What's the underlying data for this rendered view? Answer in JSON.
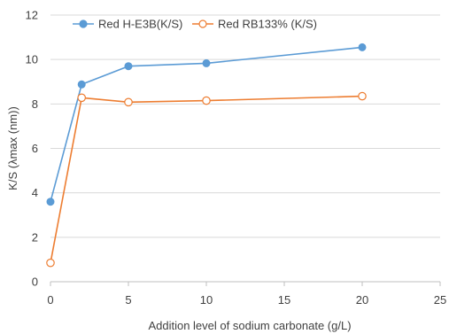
{
  "chart_data": {
    "type": "line",
    "title": "",
    "xlabel": "Addition level of sodium carbonate (g/L)",
    "ylabel": "K/S (λmax (nm))",
    "xlim": [
      0,
      25
    ],
    "ylim": [
      0,
      12
    ],
    "xticks": [
      0,
      5,
      10,
      15,
      20,
      25
    ],
    "yticks": [
      0,
      2,
      4,
      6,
      8,
      10,
      12
    ],
    "x": [
      0,
      2,
      5,
      10,
      20
    ],
    "grid": "horizontal",
    "legend_position": "top",
    "series": [
      {
        "name": "Red H-E3B(K/S)",
        "values": [
          3.6,
          8.88,
          9.7,
          9.83,
          10.55
        ],
        "color": "#5b9bd5",
        "marker": "filled-circle"
      },
      {
        "name": "Red RB133% (K/S)",
        "values": [
          0.85,
          8.28,
          8.08,
          8.15,
          8.35
        ],
        "color": "#ed7d31",
        "marker": "open-circle"
      }
    ]
  }
}
